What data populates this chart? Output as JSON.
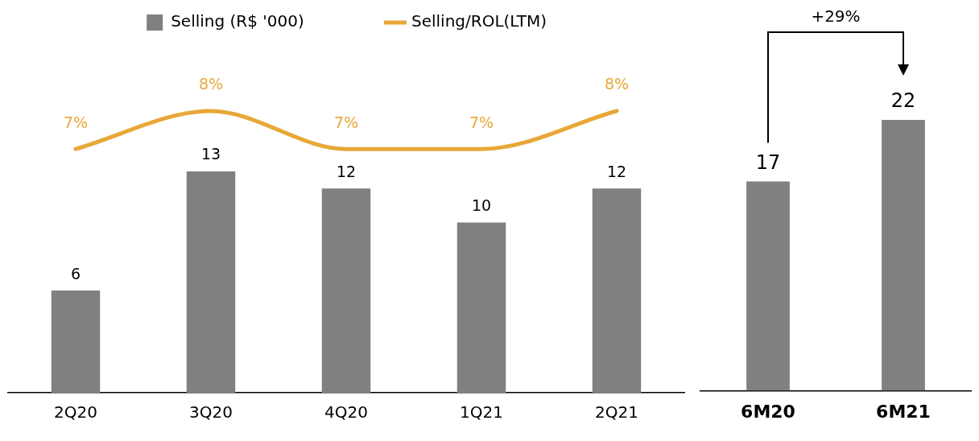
{
  "chart_data": [
    {
      "type": "bar",
      "categories": [
        "2Q20",
        "3Q20",
        "4Q20",
        "1Q21",
        "2Q21"
      ],
      "series": [
        {
          "name": "Selling (R$ '000)",
          "color": "#808080",
          "values": [
            6,
            13,
            12,
            10,
            12
          ]
        }
      ],
      "data_labels": true,
      "legend": "top",
      "tick_labels": "x"
    },
    {
      "type": "line",
      "categories": [
        null,
        null,
        null,
        null,
        null
      ],
      "series": [
        {
          "name": "Selling/ROL(LTM)",
          "color": "#e8a838",
          "values": [
            7,
            8,
            7,
            7,
            8
          ],
          "value_labels": [
            "7%",
            "8%",
            "7%",
            "7%",
            "8%"
          ]
        }
      ],
      "legend": "top",
      "tick_labels": false,
      "marker": "none"
    },
    {
      "type": "bar",
      "categories": [
        "6M20",
        "6M21"
      ],
      "values": [
        17,
        22
      ],
      "color": "#808080",
      "data_labels": true,
      "tick_labels": "x",
      "annotations": [
        "+29%"
      ]
    }
  ]
}
